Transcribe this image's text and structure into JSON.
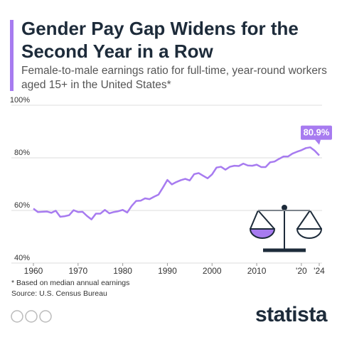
{
  "header": {
    "title": "Gender Pay Gap Widens for the Second Year in a Row",
    "subtitle": "Female-to-male earnings ratio for full-time, year-round workers aged 15+ in the United States*"
  },
  "chart_data": {
    "type": "line",
    "x": [
      1960,
      1961,
      1962,
      1963,
      1964,
      1965,
      1966,
      1967,
      1968,
      1969,
      1970,
      1971,
      1972,
      1973,
      1974,
      1975,
      1976,
      1977,
      1978,
      1979,
      1980,
      1981,
      1982,
      1983,
      1984,
      1985,
      1986,
      1987,
      1988,
      1989,
      1990,
      1991,
      1992,
      1993,
      1994,
      1995,
      1996,
      1997,
      1998,
      1999,
      2000,
      2001,
      2002,
      2003,
      2004,
      2005,
      2006,
      2007,
      2008,
      2009,
      2010,
      2011,
      2012,
      2013,
      2014,
      2015,
      2016,
      2017,
      2018,
      2019,
      2020,
      2021,
      2022,
      2023,
      2024
    ],
    "series": [
      {
        "color": "#a77bf0",
        "values": [
          60.7,
          59.4,
          59.5,
          59.6,
          59.1,
          59.9,
          57.6,
          57.8,
          58.2,
          60.1,
          59.4,
          59.5,
          57.9,
          56.6,
          58.8,
          58.8,
          60.2,
          58.9,
          59.4,
          59.7,
          60.2,
          59.2,
          61.7,
          63.6,
          63.7,
          64.6,
          64.3,
          65.2,
          66.0,
          68.7,
          71.6,
          69.9,
          70.8,
          71.5,
          72.0,
          71.4,
          73.8,
          74.2,
          73.2,
          72.2,
          73.7,
          76.3,
          76.6,
          75.5,
          76.6,
          77.0,
          76.9,
          77.8,
          77.1,
          77.0,
          77.4,
          76.5,
          76.5,
          78.3,
          78.6,
          79.6,
          80.5,
          80.5,
          81.6,
          82.3,
          82.9,
          83.7,
          84.0,
          82.7,
          80.9
        ],
        "value_labels": [
          null,
          null,
          null,
          null,
          null,
          null,
          null,
          null,
          null,
          null,
          null,
          null,
          null,
          null,
          null,
          null,
          null,
          null,
          null,
          null,
          null,
          null,
          null,
          null,
          null,
          null,
          null,
          null,
          null,
          null,
          null,
          null,
          null,
          null,
          null,
          null,
          null,
          null,
          null,
          null,
          null,
          null,
          null,
          null,
          null,
          null,
          null,
          null,
          null,
          null,
          null,
          null,
          null,
          null,
          null,
          null,
          null,
          null,
          null,
          null,
          null,
          null,
          null,
          null,
          "80.9%"
        ]
      }
    ],
    "xlim": [
      1960,
      2024
    ],
    "xticks": [
      1960,
      1970,
      1980,
      1990,
      2000,
      2010,
      {
        "value": 2020,
        "label": "'20"
      },
      {
        "value": 2024,
        "label": "'24"
      }
    ],
    "ylim": [
      40,
      100
    ],
    "yticks": [
      {
        "value": 40,
        "label": "40%"
      },
      {
        "value": 60,
        "label": "60%"
      },
      {
        "value": 80,
        "label": "80%"
      },
      {
        "value": 100,
        "label": "100%"
      }
    ],
    "grid": true
  },
  "footer": {
    "note": "* Based on median annual earnings",
    "source": "Source: U.S. Census Bureau",
    "logo": "statista"
  }
}
